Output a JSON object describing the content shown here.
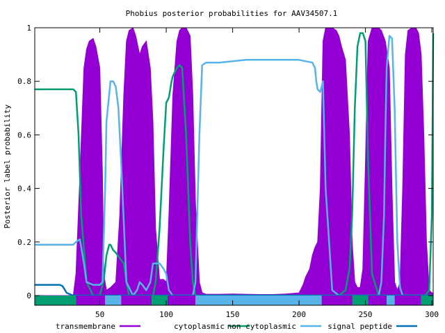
{
  "chart_data": {
    "type": "area",
    "title": "Phobius posterior probabilities for AAV34507.1",
    "xlabel": "",
    "ylabel": "Posterior label probability",
    "xlim": [
      1,
      301
    ],
    "ylim": [
      0,
      1
    ],
    "x_ticks": [
      50,
      100,
      150,
      200,
      250,
      300
    ],
    "y_ticks": [
      0,
      0.2,
      0.4,
      0.6,
      0.8,
      1
    ],
    "y_tick_labels": [
      "0",
      "0.2",
      "0.4",
      "0.6",
      "0.8",
      "1"
    ],
    "grid": false,
    "legend_position": "bottom",
    "series": [
      {
        "name": "transmembrane",
        "style": "filled",
        "color": "#9400d3",
        "x": [
          1,
          30,
          32,
          35,
          38,
          40,
          42,
          45,
          47,
          50,
          52,
          53,
          55,
          58,
          62,
          65,
          68,
          70,
          72,
          75,
          77,
          80,
          82,
          85,
          88,
          90,
          92,
          95,
          98,
          100,
          102,
          105,
          108,
          110,
          112,
          115,
          118,
          120,
          122,
          125,
          127,
          130,
          140,
          150,
          160,
          170,
          180,
          190,
          200,
          203,
          205,
          207,
          208,
          210,
          212,
          214,
          216,
          218,
          220,
          222,
          225,
          228,
          230,
          232,
          235,
          238,
          240,
          242,
          244,
          246,
          248,
          250,
          252,
          255,
          258,
          260,
          262,
          265,
          268,
          270,
          272,
          274,
          276,
          278,
          280,
          282,
          285,
          288,
          290,
          292,
          294,
          296,
          298,
          300,
          301
        ],
        "y": [
          0,
          0,
          0.08,
          0.45,
          0.85,
          0.92,
          0.95,
          0.96,
          0.93,
          0.85,
          0.45,
          0.08,
          0.02,
          0.03,
          0.05,
          0.3,
          0.75,
          0.95,
          0.99,
          1.0,
          0.97,
          0.9,
          0.93,
          0.95,
          0.85,
          0.65,
          0.25,
          0.06,
          0.06,
          0.05,
          0.3,
          0.75,
          0.95,
          0.99,
          1.0,
          1.0,
          0.97,
          0.75,
          0.35,
          0.05,
          0.01,
          0.005,
          0.005,
          0.006,
          0.005,
          0.004,
          0.004,
          0.006,
          0.01,
          0.04,
          0.07,
          0.09,
          0.1,
          0.15,
          0.18,
          0.2,
          0.4,
          0.95,
          1.0,
          1.0,
          1.0,
          0.99,
          0.97,
          0.93,
          0.88,
          0.6,
          0.2,
          0.05,
          0.03,
          0.03,
          0.1,
          0.5,
          0.95,
          1.0,
          1.0,
          1.0,
          0.99,
          0.95,
          0.85,
          0.4,
          0.05,
          0.02,
          0.05,
          0.4,
          0.9,
          0.99,
          1.0,
          1.0,
          0.98,
          0.9,
          0.6,
          0.2,
          0.02,
          0.01,
          0.01
        ]
      },
      {
        "name": "cytoplasmic",
        "style": "line",
        "color": "#009e73",
        "x": [
          1,
          20,
          30,
          32,
          34,
          36,
          40,
          45,
          50,
          53,
          55,
          57,
          58,
          60,
          62,
          65,
          68,
          70,
          72,
          75,
          80,
          85,
          88,
          90,
          92,
          95,
          98,
          100,
          102,
          104,
          105,
          108,
          110,
          112,
          115,
          118,
          120,
          122,
          125,
          130,
          140,
          150,
          160,
          170,
          180,
          190,
          200,
          203,
          205,
          207,
          210,
          212,
          215,
          220,
          225,
          230,
          235,
          238,
          240,
          242,
          244,
          246,
          248,
          250,
          252,
          255,
          260,
          265,
          270,
          275,
          280,
          285,
          290,
          295,
          298,
          300,
          301
        ],
        "y": [
          0.77,
          0.77,
          0.77,
          0.76,
          0.6,
          0.3,
          0.05,
          0.0,
          0.0,
          0.06,
          0.15,
          0.19,
          0.19,
          0.17,
          0.16,
          0.14,
          0.12,
          0.05,
          0.0,
          0.0,
          0.0,
          0.0,
          0.0,
          0.0,
          0.05,
          0.25,
          0.55,
          0.72,
          0.74,
          0.8,
          0.82,
          0.85,
          0.86,
          0.85,
          0.6,
          0.2,
          0.05,
          0.0,
          0.0,
          0.0,
          0.0,
          0.0,
          0.0,
          0.0,
          0.0,
          0.0,
          0.0,
          0.0,
          0.0,
          0.0,
          0.0,
          0.0,
          0.0,
          0.0,
          0.0,
          0.0,
          0.02,
          0.1,
          0.3,
          0.7,
          0.93,
          0.98,
          0.98,
          0.95,
          0.5,
          0.08,
          0.0,
          0.0,
          0.0,
          0.0,
          0.0,
          0.0,
          0.0,
          0.0,
          0.02,
          0.3,
          0.98
        ]
      },
      {
        "name": "non cytoplasmic",
        "style": "line",
        "color": "#56b4e9",
        "x": [
          1,
          20,
          22,
          25,
          28,
          30,
          32,
          35,
          38,
          40,
          45,
          50,
          52,
          54,
          55,
          57,
          58,
          60,
          62,
          64,
          66,
          70,
          75,
          78,
          80,
          82,
          85,
          88,
          90,
          95,
          98,
          100,
          102,
          105,
          110,
          115,
          120,
          122,
          125,
          127,
          130,
          140,
          150,
          160,
          170,
          180,
          190,
          200,
          205,
          210,
          212,
          213,
          214,
          216,
          218,
          220,
          225,
          230,
          235,
          240,
          245,
          250,
          255,
          260,
          262,
          264,
          265,
          266,
          268,
          270,
          272,
          274,
          276,
          278,
          280,
          285,
          290,
          295,
          300,
          301
        ],
        "y": [
          0.19,
          0.19,
          0.19,
          0.19,
          0.19,
          0.19,
          0.2,
          0.21,
          0.12,
          0.05,
          0.04,
          0.04,
          0.05,
          0.4,
          0.65,
          0.75,
          0.8,
          0.8,
          0.78,
          0.7,
          0.5,
          0.05,
          0.0,
          0.02,
          0.05,
          0.04,
          0.02,
          0.05,
          0.12,
          0.12,
          0.1,
          0.08,
          0.02,
          0.0,
          0.0,
          0.0,
          0.0,
          0.05,
          0.6,
          0.86,
          0.87,
          0.87,
          0.875,
          0.88,
          0.88,
          0.88,
          0.88,
          0.88,
          0.875,
          0.87,
          0.85,
          0.8,
          0.77,
          0.76,
          0.8,
          0.4,
          0.02,
          0.0,
          0.0,
          0.0,
          0.0,
          0.0,
          0.0,
          0.0,
          0.05,
          0.3,
          0.6,
          0.85,
          0.97,
          0.96,
          0.7,
          0.2,
          0.03,
          0.0,
          0.0,
          0.0,
          0.0,
          0.0,
          0.0,
          0.0
        ]
      },
      {
        "name": "signal peptide",
        "style": "line",
        "color": "#0072b2",
        "x": [
          1,
          20,
          22,
          25,
          30,
          40,
          60,
          100,
          150,
          200,
          250,
          300,
          301
        ],
        "y": [
          0.04,
          0.04,
          0.035,
          0.01,
          0.0,
          0.0,
          0.0,
          0.0,
          0.0,
          0.0,
          0.0,
          0.0,
          0.0
        ]
      }
    ],
    "segments": [
      {
        "start": 1,
        "end": 32,
        "color": "#009e73"
      },
      {
        "start": 32,
        "end": 54,
        "color": "#9400d3"
      },
      {
        "start": 54,
        "end": 66,
        "color": "#56b4e9"
      },
      {
        "start": 66,
        "end": 89,
        "color": "#9400d3"
      },
      {
        "start": 89,
        "end": 101,
        "color": "#009e73"
      },
      {
        "start": 101,
        "end": 122,
        "color": "#9400d3"
      },
      {
        "start": 122,
        "end": 217,
        "color": "#56b4e9"
      },
      {
        "start": 217,
        "end": 240,
        "color": "#9400d3"
      },
      {
        "start": 240,
        "end": 252,
        "color": "#009e73"
      },
      {
        "start": 252,
        "end": 266,
        "color": "#9400d3"
      },
      {
        "start": 266,
        "end": 272,
        "color": "#56b4e9"
      },
      {
        "start": 272,
        "end": 292,
        "color": "#9400d3"
      },
      {
        "start": 292,
        "end": 301,
        "color": "#009e73"
      }
    ]
  }
}
